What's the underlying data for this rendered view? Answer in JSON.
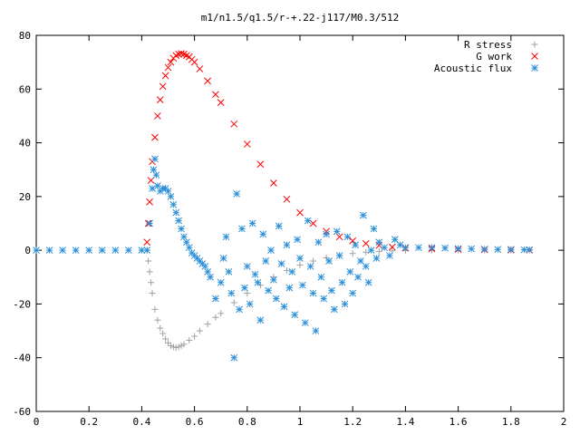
{
  "chart_data": {
    "type": "scatter",
    "title": "m1/n1.5/q1.5/r-+.22-j117/M0.3/512",
    "xlabel": "",
    "ylabel": "",
    "xlim": [
      0,
      2
    ],
    "ylim": [
      -60,
      80
    ],
    "xticks": [
      0,
      0.2,
      0.4,
      0.6,
      0.8,
      1,
      1.2,
      1.4,
      1.6,
      1.8,
      2
    ],
    "xtick_labels": [
      "0",
      "0.2",
      "0.4",
      "0.6",
      "0.8",
      "1",
      "1.2",
      "1.4",
      "1.6",
      "1.8",
      "2"
    ],
    "yticks": [
      -60,
      -40,
      -20,
      0,
      20,
      40,
      60,
      80
    ],
    "ytick_labels": [
      "-60",
      "-40",
      "-20",
      "0",
      "20",
      "40",
      "60",
      "80"
    ],
    "grid": false,
    "legend_position": "top-right",
    "series": [
      {
        "name": "R stress",
        "marker": "plus",
        "color": "#a0a0a0",
        "x": [
          0.42,
          0.425,
          0.43,
          0.435,
          0.44,
          0.45,
          0.46,
          0.47,
          0.48,
          0.49,
          0.5,
          0.51,
          0.52,
          0.53,
          0.54,
          0.55,
          0.56,
          0.58,
          0.6,
          0.62,
          0.65,
          0.68,
          0.7,
          0.75,
          0.8,
          0.85,
          0.9,
          0.95,
          1.0,
          1.05,
          1.1,
          1.15,
          1.2,
          1.25,
          1.3,
          1.35,
          1.4,
          1.5,
          1.6,
          1.7,
          1.8,
          1.87
        ],
        "y": [
          0,
          -4,
          -8,
          -12,
          -16,
          -22,
          -26,
          -29,
          -31,
          -33,
          -34.5,
          -35.5,
          -36,
          -36.2,
          -36,
          -35.5,
          -35,
          -33.5,
          -32,
          -30,
          -27.5,
          -25,
          -23.5,
          -19.5,
          -16,
          -13,
          -10,
          -7.5,
          -5.5,
          -4,
          -2.8,
          -1.9,
          -1.2,
          -0.7,
          -0.4,
          -0.2,
          -0.1,
          0,
          0,
          0,
          0,
          0
        ]
      },
      {
        "name": "G work",
        "marker": "cross",
        "color": "#ff0000",
        "x": [
          0.42,
          0.425,
          0.43,
          0.435,
          0.44,
          0.45,
          0.46,
          0.47,
          0.48,
          0.49,
          0.5,
          0.51,
          0.52,
          0.53,
          0.54,
          0.55,
          0.56,
          0.57,
          0.58,
          0.59,
          0.6,
          0.62,
          0.65,
          0.68,
          0.7,
          0.75,
          0.8,
          0.85,
          0.9,
          0.95,
          1.0,
          1.05,
          1.1,
          1.15,
          1.2,
          1.25,
          1.3,
          1.35,
          1.4,
          1.5,
          1.6,
          1.7,
          1.8,
          1.87
        ],
        "y": [
          3,
          10,
          18,
          26,
          33,
          42,
          50,
          56,
          61,
          65,
          68,
          70,
          71.5,
          72.5,
          73,
          73.2,
          73,
          72.5,
          72,
          71,
          70,
          67.5,
          63,
          58,
          55,
          47,
          39.5,
          32,
          25,
          19,
          14,
          10,
          7,
          5,
          3.5,
          2.5,
          1.8,
          1.2,
          0.8,
          0.5,
          0.3,
          0.2,
          0.1,
          0.1
        ]
      },
      {
        "name": "Acoustic flux",
        "marker": "star",
        "color": "#2b8fd8",
        "x": [
          0.0,
          0.05,
          0.1,
          0.15,
          0.2,
          0.25,
          0.3,
          0.35,
          0.4,
          0.42,
          0.43,
          0.44,
          0.445,
          0.45,
          0.455,
          0.46,
          0.47,
          0.48,
          0.49,
          0.5,
          0.51,
          0.52,
          0.53,
          0.54,
          0.55,
          0.56,
          0.57,
          0.58,
          0.59,
          0.6,
          0.61,
          0.62,
          0.63,
          0.64,
          0.65,
          0.66,
          0.68,
          0.7,
          0.71,
          0.72,
          0.73,
          0.74,
          0.75,
          0.76,
          0.77,
          0.78,
          0.79,
          0.8,
          0.81,
          0.82,
          0.83,
          0.84,
          0.85,
          0.86,
          0.87,
          0.88,
          0.89,
          0.9,
          0.91,
          0.92,
          0.93,
          0.94,
          0.95,
          0.96,
          0.97,
          0.98,
          0.99,
          1.0,
          1.01,
          1.02,
          1.03,
          1.04,
          1.05,
          1.06,
          1.07,
          1.08,
          1.09,
          1.1,
          1.11,
          1.12,
          1.13,
          1.14,
          1.15,
          1.16,
          1.17,
          1.18,
          1.19,
          1.2,
          1.21,
          1.22,
          1.23,
          1.24,
          1.25,
          1.26,
          1.27,
          1.28,
          1.29,
          1.3,
          1.32,
          1.34,
          1.36,
          1.38,
          1.4,
          1.45,
          1.5,
          1.55,
          1.6,
          1.65,
          1.7,
          1.75,
          1.8,
          1.85,
          1.87
        ],
        "y": [
          0,
          0,
          0,
          0,
          0,
          0,
          0,
          0,
          0,
          0,
          10,
          23,
          30,
          34,
          28,
          24,
          22,
          23,
          23,
          22,
          20,
          17,
          14,
          11,
          8,
          5,
          3,
          1,
          -1,
          -2,
          -3,
          -4,
          -5,
          -6,
          -8,
          -10,
          -18,
          -12,
          -3,
          5,
          -8,
          -16,
          -40,
          21,
          -22,
          8,
          -14,
          -6,
          -20,
          10,
          -9,
          -12,
          -26,
          6,
          -4,
          -15,
          0,
          -11,
          -18,
          9,
          -5,
          -21,
          2,
          -14,
          -8,
          -24,
          4,
          -3,
          -13,
          -27,
          11,
          -6,
          -16,
          -30,
          3,
          -10,
          -18,
          6,
          -4,
          -15,
          -22,
          7,
          -2,
          -12,
          -20,
          5,
          -8,
          -16,
          2,
          -10,
          -4,
          13,
          -6,
          -12,
          0,
          8,
          -3,
          3,
          1,
          -2,
          4,
          2,
          1,
          1,
          1,
          0.8,
          0.6,
          0.5,
          0.4,
          0.3,
          0.3,
          0.2,
          0.2
        ]
      }
    ]
  }
}
